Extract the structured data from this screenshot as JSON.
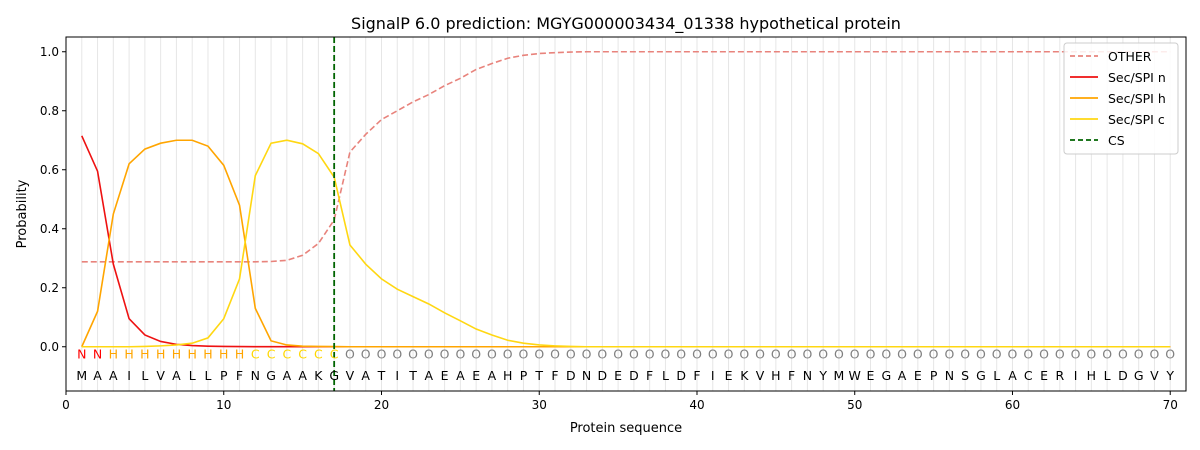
{
  "chart_data": {
    "type": "line",
    "title": "SignalP 6.0 prediction: MGYG000003434_01338 hypothetical protein",
    "xlabel": "Protein sequence",
    "ylabel": "Probability",
    "xlim": [
      0,
      71
    ],
    "ylim": [
      -0.15,
      1.05
    ],
    "x_ticks": [
      0,
      10,
      20,
      30,
      40,
      50,
      60,
      70
    ],
    "y_ticks": [
      0.0,
      0.2,
      0.4,
      0.6,
      0.8,
      1.0
    ],
    "x_tick_labels": [
      "0",
      "10",
      "20",
      "30",
      "40",
      "50",
      "60",
      "70"
    ],
    "y_tick_labels": [
      "0.0",
      "0.2",
      "0.4",
      "0.6",
      "0.8",
      "1.0"
    ],
    "grid": "vertical lines at each residue",
    "legend_position": "top-right",
    "sequence": "MAAILVALLPFNGAAKGVATITAEAEAHPTFDNDEDFLDFIEKVHFNYMWEGAEPNSGLACERIHLDGVY",
    "labels": "NNHHHHHHHHHCCCCCCOOOOOOOOOOOOOOOOOOOOOOOOOOOOOOOOOOOOOOOOOOOOOOOOOOOOO",
    "label_colors": {
      "N": "#ff0000",
      "H": "#ffa500",
      "C": "#ffd700",
      "O": "#808080"
    },
    "cleavage_site": 17,
    "series": [
      {
        "name": "OTHER",
        "color": "#e8837c",
        "dash": true,
        "values": [
          0.288,
          0.288,
          0.288,
          0.288,
          0.288,
          0.288,
          0.288,
          0.288,
          0.288,
          0.288,
          0.288,
          0.288,
          0.289,
          0.293,
          0.31,
          0.35,
          0.43,
          0.66,
          0.72,
          0.77,
          0.8,
          0.83,
          0.855,
          0.885,
          0.91,
          0.94,
          0.96,
          0.978,
          0.988,
          0.994,
          0.997,
          0.999,
          1,
          1,
          1,
          1,
          1,
          1,
          1,
          1,
          1,
          1,
          1,
          1,
          1,
          1,
          1,
          1,
          1,
          1,
          1,
          1,
          1,
          1,
          1,
          1,
          1,
          1,
          1,
          1,
          1,
          1,
          1,
          1,
          1,
          1,
          1,
          1,
          1,
          1
        ]
      },
      {
        "name": "Sec/SPI n",
        "color": "#ee1111",
        "dash": false,
        "values": [
          0.715,
          0.595,
          0.28,
          0.095,
          0.04,
          0.018,
          0.008,
          0.004,
          0.002,
          0.001,
          0.0005,
          0.0003,
          0.0002,
          0.0001,
          0,
          0,
          0,
          0,
          0,
          0,
          0,
          0,
          0,
          0,
          0,
          0,
          0,
          0,
          0,
          0,
          0,
          0,
          0,
          0,
          0,
          0,
          0,
          0,
          0,
          0,
          0,
          0,
          0,
          0,
          0,
          0,
          0,
          0,
          0,
          0,
          0,
          0,
          0,
          0,
          0,
          0,
          0,
          0,
          0,
          0,
          0,
          0,
          0,
          0,
          0,
          0,
          0,
          0,
          0,
          0
        ]
      },
      {
        "name": "Sec/SPI h",
        "color": "#ffa500",
        "dash": false,
        "values": [
          0.0,
          0.12,
          0.45,
          0.62,
          0.67,
          0.69,
          0.7,
          0.7,
          0.68,
          0.615,
          0.48,
          0.13,
          0.02,
          0.006,
          0.002,
          0.001,
          0.0005,
          0,
          0,
          0,
          0,
          0,
          0,
          0,
          0,
          0,
          0,
          0,
          0,
          0,
          0,
          0,
          0,
          0,
          0,
          0,
          0,
          0,
          0,
          0,
          0,
          0,
          0,
          0,
          0,
          0,
          0,
          0,
          0,
          0,
          0,
          0,
          0,
          0,
          0,
          0,
          0,
          0,
          0,
          0,
          0,
          0,
          0,
          0,
          0,
          0,
          0,
          0,
          0,
          0
        ]
      },
      {
        "name": "Sec/SPI c",
        "color": "#ffd712",
        "dash": false,
        "values": [
          0.0,
          0.0,
          0.0,
          0.0,
          0.001,
          0.003,
          0.006,
          0.012,
          0.03,
          0.095,
          0.23,
          0.58,
          0.69,
          0.7,
          0.688,
          0.655,
          0.575,
          0.345,
          0.28,
          0.23,
          0.195,
          0.17,
          0.145,
          0.115,
          0.088,
          0.06,
          0.04,
          0.022,
          0.012,
          0.006,
          0.003,
          0.001,
          0,
          0,
          0,
          0,
          0,
          0,
          0,
          0,
          0,
          0,
          0,
          0,
          0,
          0,
          0,
          0,
          0,
          0,
          0,
          0,
          0,
          0,
          0,
          0,
          0,
          0,
          0,
          0,
          0,
          0,
          0,
          0,
          0,
          0,
          0,
          0,
          0,
          0
        ]
      }
    ],
    "legend": [
      {
        "name": "OTHER",
        "color": "#e8837c",
        "dash": true
      },
      {
        "name": "Sec/SPI n",
        "color": "#ee1111",
        "dash": false
      },
      {
        "name": "Sec/SPI h",
        "color": "#ffa500",
        "dash": false
      },
      {
        "name": "Sec/SPI c",
        "color": "#ffd712",
        "dash": false
      },
      {
        "name": "CS",
        "color": "#006400",
        "dash": true
      }
    ]
  }
}
